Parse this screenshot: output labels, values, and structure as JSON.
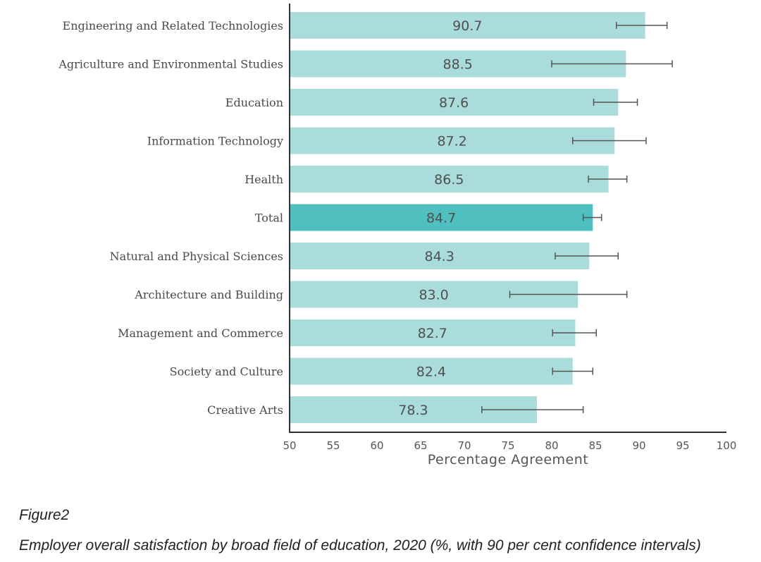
{
  "chart_data": {
    "type": "bar",
    "orientation": "horizontal",
    "categories": [
      "Engineering and Related Technologies",
      "Agriculture and Environmental Studies",
      "Education",
      "Information Technology",
      "Health",
      "Total",
      "Natural and Physical Sciences",
      "Architecture and Building",
      "Management and Commerce",
      "Society and Culture",
      "Creative Arts"
    ],
    "values": [
      90.7,
      88.5,
      87.6,
      87.2,
      86.5,
      84.7,
      84.3,
      83.0,
      82.7,
      82.4,
      78.3
    ],
    "value_labels": [
      "90.7",
      "88.5",
      "87.6",
      "87.2",
      "86.5",
      "84.7",
      "84.3",
      "83.0",
      "82.7",
      "82.4",
      "78.3"
    ],
    "ci_low": [
      87.4,
      80.0,
      84.8,
      82.4,
      84.2,
      83.6,
      80.4,
      75.2,
      80.1,
      80.1,
      72.0
    ],
    "ci_high": [
      93.2,
      93.8,
      89.8,
      90.8,
      88.6,
      85.7,
      87.6,
      88.6,
      85.1,
      84.7,
      83.6
    ],
    "highlight_category": "Total",
    "xlim": [
      50,
      100
    ],
    "xticks": [
      50,
      55,
      60,
      65,
      70,
      75,
      80,
      85,
      90,
      95,
      100
    ],
    "xtick_labels": [
      "50",
      "55",
      "60",
      "65",
      "70",
      "75",
      "80",
      "85",
      "90",
      "95",
      "100"
    ],
    "xlabel": "Percentage Agreement",
    "ylabel": "",
    "grid": false,
    "colors": {
      "bar": "#aadcdb",
      "highlight_bar": "#4fc0bf",
      "error_bar": "#555555",
      "axis": "#333333"
    }
  },
  "figure": {
    "label": "Figure2",
    "caption": "Employer overall satisfaction by broad field of education, 2020 (%, with 90 per cent confidence intervals)"
  }
}
